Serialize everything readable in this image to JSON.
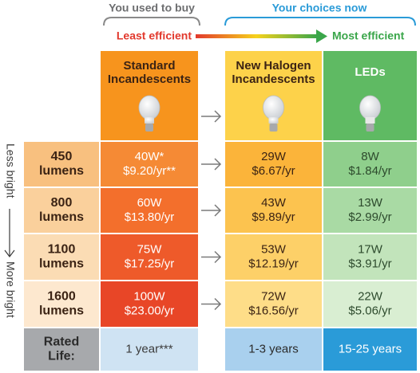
{
  "header": {
    "past_label": "You used to buy",
    "now_label": "Your choices now",
    "least": "Least efficient",
    "most": "Most efficient"
  },
  "columns": [
    [
      "Standard",
      "Incandescents"
    ],
    [
      "New Halogen",
      "Incandescents"
    ],
    [
      "LEDs"
    ]
  ],
  "side": {
    "top": "Less bright",
    "bottom": "More bright"
  },
  "rows": [
    {
      "label": [
        "450",
        "lumens"
      ],
      "cells": [
        [
          "40W*",
          "$9.20/yr**"
        ],
        [
          "29W",
          "$6.67/yr"
        ],
        [
          "8W",
          "$1.84/yr"
        ]
      ]
    },
    {
      "label": [
        "800",
        "lumens"
      ],
      "cells": [
        [
          "60W",
          "$13.80/yr"
        ],
        [
          "43W",
          "$9.89/yr"
        ],
        [
          "13W",
          "$2.99/yr"
        ]
      ]
    },
    {
      "label": [
        "1100",
        "lumens"
      ],
      "cells": [
        [
          "75W",
          "$17.25/yr"
        ],
        [
          "53W",
          "$12.19/yr"
        ],
        [
          "17W",
          "$3.91/yr"
        ]
      ]
    },
    {
      "label": [
        "1600",
        "lumens"
      ],
      "cells": [
        [
          "100W",
          "$23.00/yr"
        ],
        [
          "72W",
          "$16.56/yr"
        ],
        [
          "22W",
          "$5.06/yr"
        ]
      ]
    }
  ],
  "rated_life": {
    "label": [
      "Rated",
      "Life:"
    ],
    "values": [
      "1 year***",
      "1-3 years",
      "15-25 years"
    ]
  }
}
